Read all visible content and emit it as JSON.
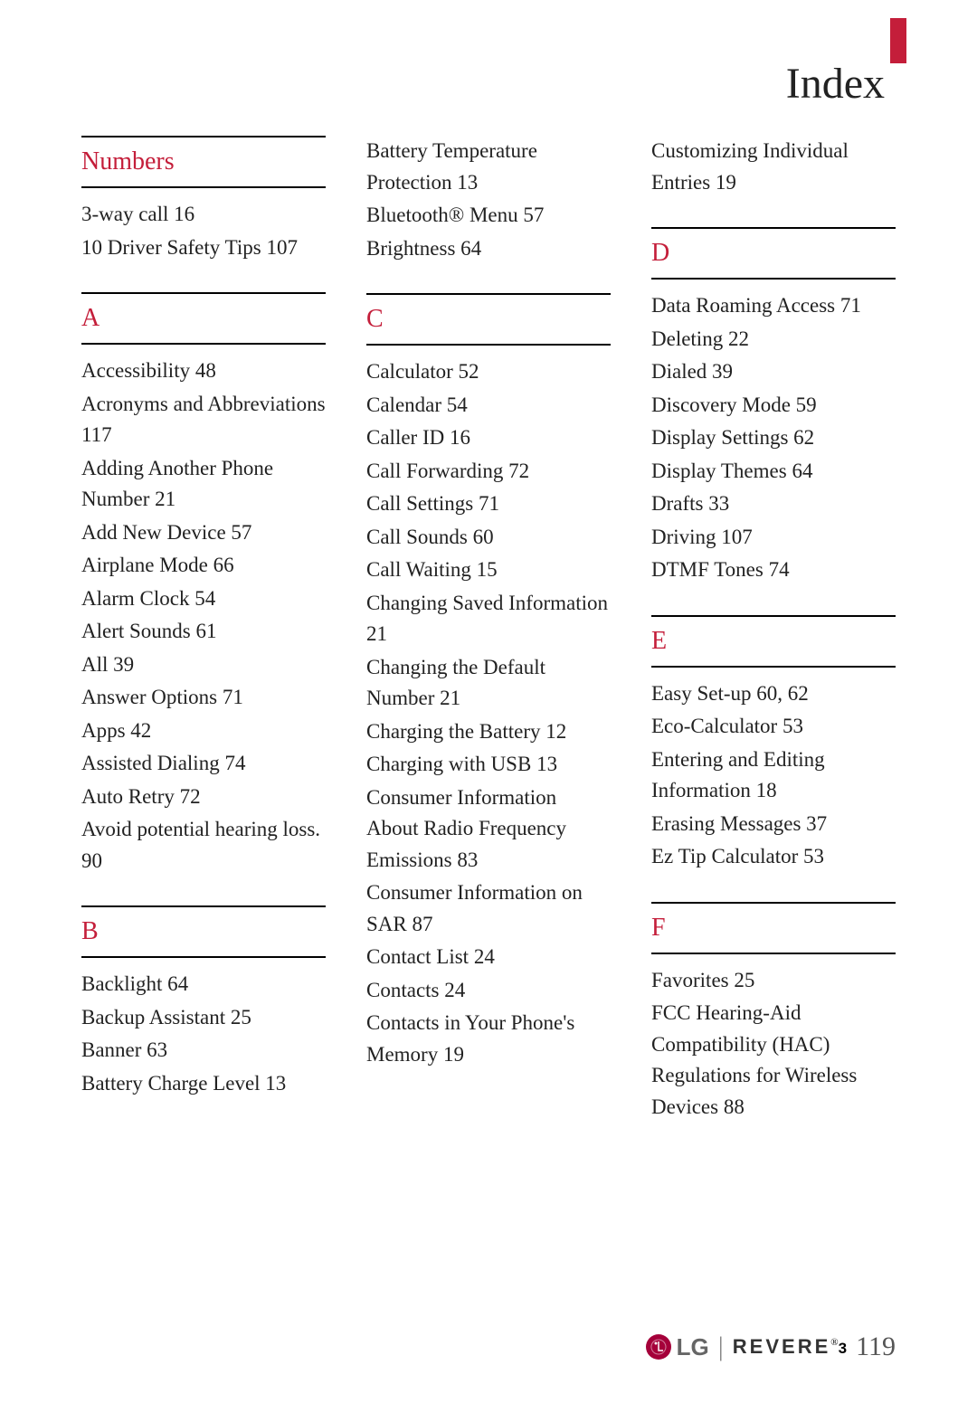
{
  "page": {
    "title": "Index",
    "number": "119",
    "accent_color": "#c41e3a",
    "text_color": "#222222",
    "background_color": "#ffffff"
  },
  "footer": {
    "logo_brand": "LG",
    "product_name": "REVERE",
    "product_suffix": "3"
  },
  "columns": [
    {
      "sections": [
        {
          "heading": "Numbers",
          "entries": [
            "3-way call  16",
            "10 Driver Safety Tips  107"
          ]
        },
        {
          "heading": "A",
          "entries": [
            "Accessibility  48",
            "Acronyms and Abbreviations  117",
            "Adding Another Phone Number  21",
            "Add New Device  57",
            "Airplane Mode  66",
            "Alarm Clock  54",
            "Alert Sounds  61",
            "All  39",
            "Answer Options  71",
            "Apps  42",
            "Assisted Dialing  74",
            "Auto Retry  72",
            "Avoid potential hearing loss.  90"
          ]
        },
        {
          "heading": "B",
          "entries": [
            "Backlight  64",
            "Backup Assistant  25",
            "Banner  63",
            "Battery Charge Level  13"
          ]
        }
      ]
    },
    {
      "sections": [
        {
          "continuation": true,
          "entries": [
            "Battery Temperature Protection  13",
            "Bluetooth® Menu  57",
            "Brightness  64"
          ]
        },
        {
          "heading": "C",
          "entries": [
            "Calculator  52",
            "Calendar  54",
            "Caller ID  16",
            "Call Forwarding  72",
            "Call Settings  71",
            "Call Sounds  60",
            "Call Waiting  15",
            "Changing Saved Information  21",
            "Changing the Default Number  21",
            "Charging the Battery  12",
            "Charging with USB  13",
            "Consumer Information About Radio Frequency Emissions  83",
            "Consumer Information on SAR  87",
            "Contact List  24",
            "Contacts  24",
            "Contacts in Your Phone's Memory  19"
          ]
        }
      ]
    },
    {
      "sections": [
        {
          "continuation": true,
          "entries": [
            "Customizing Individual Entries  19"
          ]
        },
        {
          "heading": "D",
          "entries": [
            "Data Roaming Access  71",
            "Deleting  22",
            "Dialed  39",
            "Discovery Mode  59",
            "Display Settings  62",
            "Display Themes  64",
            "Drafts  33",
            "Driving  107",
            "DTMF Tones  74"
          ]
        },
        {
          "heading": "E",
          "entries": [
            "Easy Set-up  60, 62",
            "Eco-Calculator  53",
            "Entering and Editing Information  18",
            "Erasing Messages  37",
            "Ez Tip Calculator  53"
          ]
        },
        {
          "heading": "F",
          "entries": [
            "Favorites  25",
            "FCC Hearing-Aid Compatibility (HAC) Regulations for Wireless Devices  88"
          ]
        }
      ]
    }
  ]
}
